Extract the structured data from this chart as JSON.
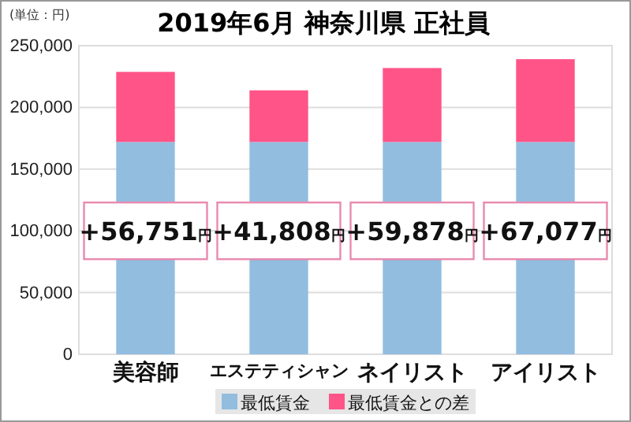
{
  "chart_data": {
    "type": "bar",
    "stacked": true,
    "title": "2019年6月 神奈川県 正社員",
    "ylabel": "(単位：円)",
    "categories": [
      "美容師",
      "エステティシャン",
      "ネイリスト",
      "アイリスト"
    ],
    "series": [
      {
        "name": "最低賃金",
        "color": "#92bddf",
        "values": [
          172000,
          172000,
          172000,
          172000
        ]
      },
      {
        "name": "最低賃金との差",
        "color": "#ff5488",
        "values": [
          56751,
          41808,
          59878,
          67077
        ],
        "value_labels": [
          "+56,751円",
          "+41,808円",
          "+59,878円",
          "+67,077円"
        ]
      }
    ],
    "ylim": [
      0,
      250000
    ],
    "yticks": [
      {
        "value": 0,
        "label": "0"
      },
      {
        "value": 50000,
        "label": "50,000"
      },
      {
        "value": 100000,
        "label": "100,000"
      },
      {
        "value": 150000,
        "label": "150,000"
      },
      {
        "value": 200000,
        "label": "200,000"
      },
      {
        "value": 250000,
        "label": "250,000"
      }
    ],
    "grid": "y",
    "legend": "bottom"
  }
}
